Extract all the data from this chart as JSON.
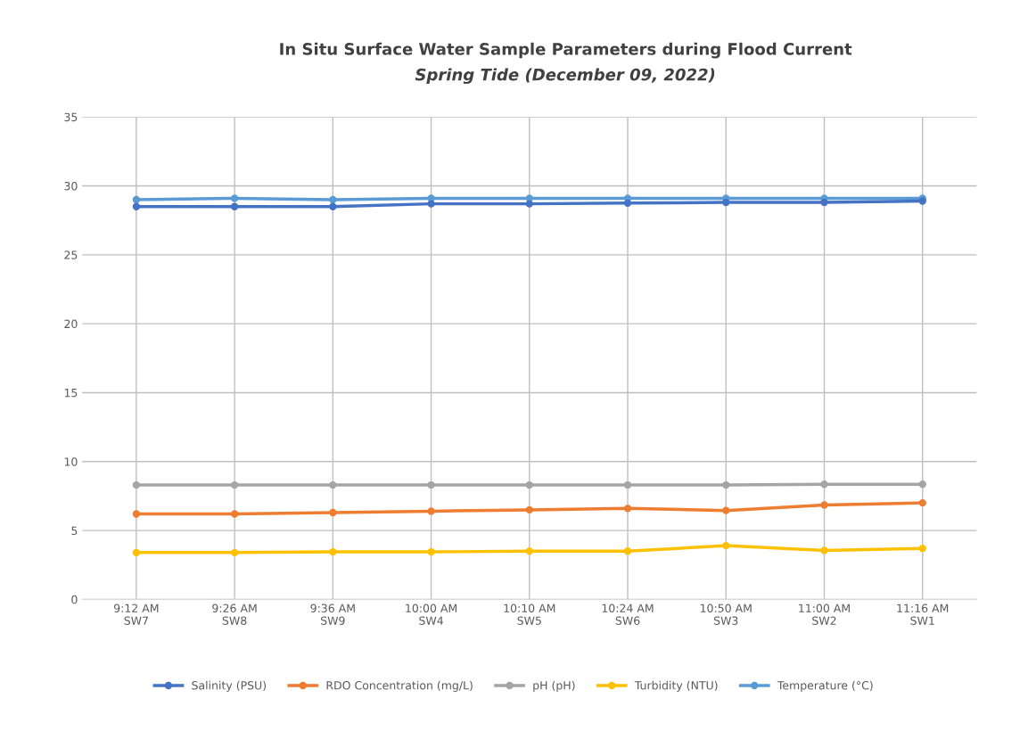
{
  "chart_data": {
    "type": "line",
    "title": "In Situ Surface Water Sample Parameters during Flood Current",
    "subtitle": "Spring Tide (December 09, 2022)",
    "categories": [
      "9:12 AM\nSW7",
      "9:26 AM\nSW8",
      "9:36 AM\nSW9",
      "10:00 AM\nSW4",
      "10:10 AM\nSW5",
      "10:24 AM\nSW6",
      "10:50 AM\nSW3",
      "11:00 AM\nSW2",
      "11:16 AM\nSW1"
    ],
    "series": [
      {
        "name": "Salinity (PSU)",
        "color": "#4472c4",
        "values": [
          28.5,
          28.5,
          28.5,
          28.7,
          28.7,
          28.75,
          28.8,
          28.8,
          28.9
        ]
      },
      {
        "name": "RDO Concentration (mg/L)",
        "color": "#ed7d31",
        "values": [
          6.2,
          6.2,
          6.3,
          6.4,
          6.5,
          6.6,
          6.45,
          6.85,
          7.0
        ]
      },
      {
        "name": "pH (pH)",
        "color": "#a5a5a5",
        "values": [
          8.3,
          8.3,
          8.3,
          8.3,
          8.3,
          8.3,
          8.3,
          8.35,
          8.35
        ]
      },
      {
        "name": "Turbidity (NTU)",
        "color": "#ffc000",
        "values": [
          3.4,
          3.4,
          3.45,
          3.45,
          3.5,
          3.5,
          3.9,
          3.55,
          3.7
        ]
      },
      {
        "name": "Temperature (°C)",
        "color": "#5b9bd5",
        "values": [
          29.0,
          29.1,
          29.0,
          29.1,
          29.1,
          29.1,
          29.1,
          29.1,
          29.1
        ]
      }
    ],
    "ylim": [
      0,
      35
    ],
    "yticks": [
      0,
      5,
      10,
      15,
      20,
      25,
      30,
      35
    ],
    "grid": true,
    "legend": "bottom",
    "marker": "circle",
    "line_style": "solid"
  }
}
